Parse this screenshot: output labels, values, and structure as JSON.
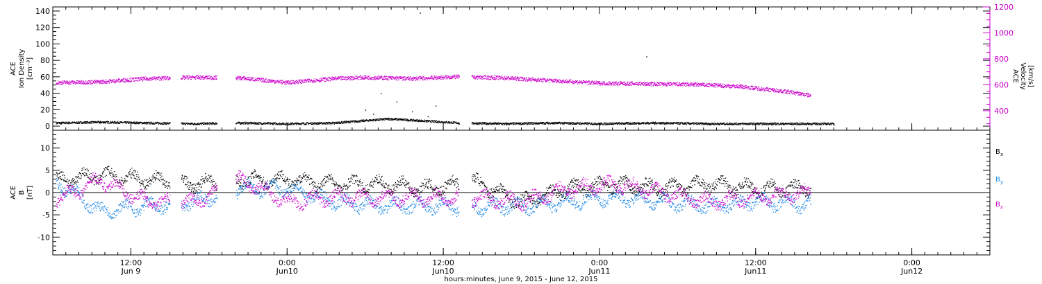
{
  "chart_data": [
    {
      "type": "scatter",
      "left_axis": {
        "label_lines": [
          "ACE",
          "Ion Density",
          "[cm⁻³]"
        ],
        "range": [
          -5,
          145
        ],
        "ticks": [
          "0",
          "20",
          "40",
          "60",
          "80",
          "100",
          "120",
          "140"
        ],
        "tick_values": [
          0,
          20,
          40,
          60,
          80,
          100,
          120,
          140
        ]
      },
      "right_axis": {
        "label_lines": [
          "ACE",
          "Velocity",
          "[km/s]"
        ],
        "range": [
          250,
          1200
        ],
        "ticks": [
          "400",
          "600",
          "800",
          "1000",
          "1200"
        ],
        "tick_values": [
          400,
          600,
          800,
          1000,
          1200
        ],
        "color": "#cc00cc"
      },
      "series": [
        {
          "name": "",
          "axis": "left",
          "color": "#000000",
          "note_values": "baseline ~3 cm^-3 with scattered spikes",
          "points": [
            [
              0.05,
              3
            ],
            [
              0.3,
              4
            ],
            [
              0.6,
              3
            ],
            [
              0.9,
              2
            ],
            [
              1.2,
              3
            ],
            [
              1.5,
              2
            ],
            [
              1.8,
              3
            ],
            [
              2.0,
              20
            ],
            [
              2.05,
              15
            ],
            [
              2.1,
              40
            ],
            [
              2.15,
              8
            ],
            [
              2.2,
              30
            ],
            [
              2.3,
              18
            ],
            [
              2.35,
              138
            ],
            [
              2.4,
              12
            ],
            [
              2.45,
              25
            ],
            [
              2.6,
              3
            ],
            [
              2.9,
              2
            ],
            [
              3.2,
              3
            ],
            [
              3.5,
              2
            ],
            [
              3.8,
              85
            ],
            [
              3.85,
              3
            ],
            [
              4.2,
              2
            ],
            [
              4.6,
              2
            ],
            [
              5.0,
              2
            ]
          ]
        },
        {
          "name": "",
          "axis": "right",
          "color": "#cc00cc",
          "note_values": "solar wind speed ~620 km/s declining to ~500 km/s",
          "points": [
            [
              0.05,
              620
            ],
            [
              0.3,
              625
            ],
            [
              0.6,
              650
            ],
            [
              0.9,
              660
            ],
            [
              1.2,
              655
            ],
            [
              1.5,
              620
            ],
            [
              1.8,
              650
            ],
            [
              2.0,
              660
            ],
            [
              2.3,
              650
            ],
            [
              2.6,
              665
            ],
            [
              2.9,
              655
            ],
            [
              3.2,
              635
            ],
            [
              3.5,
              615
            ],
            [
              3.8,
              610
            ],
            [
              4.1,
              605
            ],
            [
              4.4,
              590
            ],
            [
              4.7,
              550
            ],
            [
              4.85,
              520
            ]
          ]
        }
      ],
      "gaps": [
        [
          0.75,
          0.82
        ],
        [
          1.05,
          1.17
        ],
        [
          2.6,
          2.68
        ]
      ]
    },
    {
      "type": "scatter",
      "left_axis": {
        "label_lines": [
          "ACE",
          "B",
          "[nT]"
        ],
        "range": [
          -14,
          14
        ],
        "ticks": [
          "-10",
          "-5",
          "0",
          "5",
          "10"
        ],
        "tick_values": [
          -10,
          -5,
          0,
          5,
          10
        ]
      },
      "zero_line": true,
      "series": [
        {
          "name": "Bx",
          "label": "B",
          "sub": "x",
          "color": "#000000",
          "points": [
            [
              0.05,
              3
            ],
            [
              0.3,
              4
            ],
            [
              0.6,
              3
            ],
            [
              0.9,
              2
            ],
            [
              1.2,
              3
            ],
            [
              1.5,
              3
            ],
            [
              1.8,
              2
            ],
            [
              2.1,
              2
            ],
            [
              2.4,
              1
            ],
            [
              2.7,
              2.5
            ],
            [
              3.0,
              -2
            ],
            [
              3.3,
              1
            ],
            [
              3.6,
              2
            ],
            [
              3.9,
              1
            ],
            [
              4.2,
              2
            ],
            [
              4.5,
              1
            ],
            [
              4.85,
              1
            ]
          ]
        },
        {
          "name": "By",
          "label": "B",
          "sub": "y",
          "color": "#1e88e5",
          "points": [
            [
              0.05,
              2
            ],
            [
              0.3,
              -4
            ],
            [
              0.6,
              -3
            ],
            [
              0.9,
              -2
            ],
            [
              1.2,
              1
            ],
            [
              1.5,
              1
            ],
            [
              1.8,
              -2
            ],
            [
              2.1,
              -3
            ],
            [
              2.4,
              -3
            ],
            [
              2.7,
              -3
            ],
            [
              3.0,
              -3
            ],
            [
              3.3,
              -2
            ],
            [
              3.6,
              -1
            ],
            [
              3.9,
              -2
            ],
            [
              4.2,
              -3
            ],
            [
              4.5,
              -2
            ],
            [
              4.85,
              -2.5
            ]
          ]
        },
        {
          "name": "Bz",
          "label": "B",
          "sub": "z",
          "color": "#cc00cc",
          "points": [
            [
              0.05,
              -1
            ],
            [
              0.3,
              3
            ],
            [
              0.6,
              -2
            ],
            [
              0.9,
              -2
            ],
            [
              1.2,
              3
            ],
            [
              1.5,
              -2
            ],
            [
              1.8,
              -1
            ],
            [
              2.1,
              -1
            ],
            [
              2.4,
              -1
            ],
            [
              2.7,
              -1
            ],
            [
              3.0,
              -2
            ],
            [
              3.3,
              1
            ],
            [
              3.6,
              2
            ],
            [
              3.9,
              0
            ],
            [
              4.2,
              -2
            ],
            [
              4.5,
              -1
            ],
            [
              4.85,
              0
            ]
          ]
        }
      ],
      "gaps": [
        [
          0.75,
          0.82
        ],
        [
          1.05,
          1.17
        ],
        [
          2.6,
          2.68
        ]
      ]
    }
  ],
  "x_axis": {
    "range_days": [
      0,
      6.0
    ],
    "major": [
      {
        "time": "12:00",
        "date": "Jun 9",
        "day": 0.5
      },
      {
        "time": "0:00",
        "date": "Jun10",
        "day": 1.5
      },
      {
        "time": "12:00",
        "date": "Jun10",
        "day": 2.5
      },
      {
        "time": "0:00",
        "date": "Jun11",
        "day": 3.5
      },
      {
        "time": "12:00",
        "date": "Jun11",
        "day": 4.5
      },
      {
        "time": "0:00",
        "date": "Jun12",
        "day": 5.5
      }
    ],
    "caption": "hours:minutes, June  9, 2015 - June 12, 2015"
  }
}
